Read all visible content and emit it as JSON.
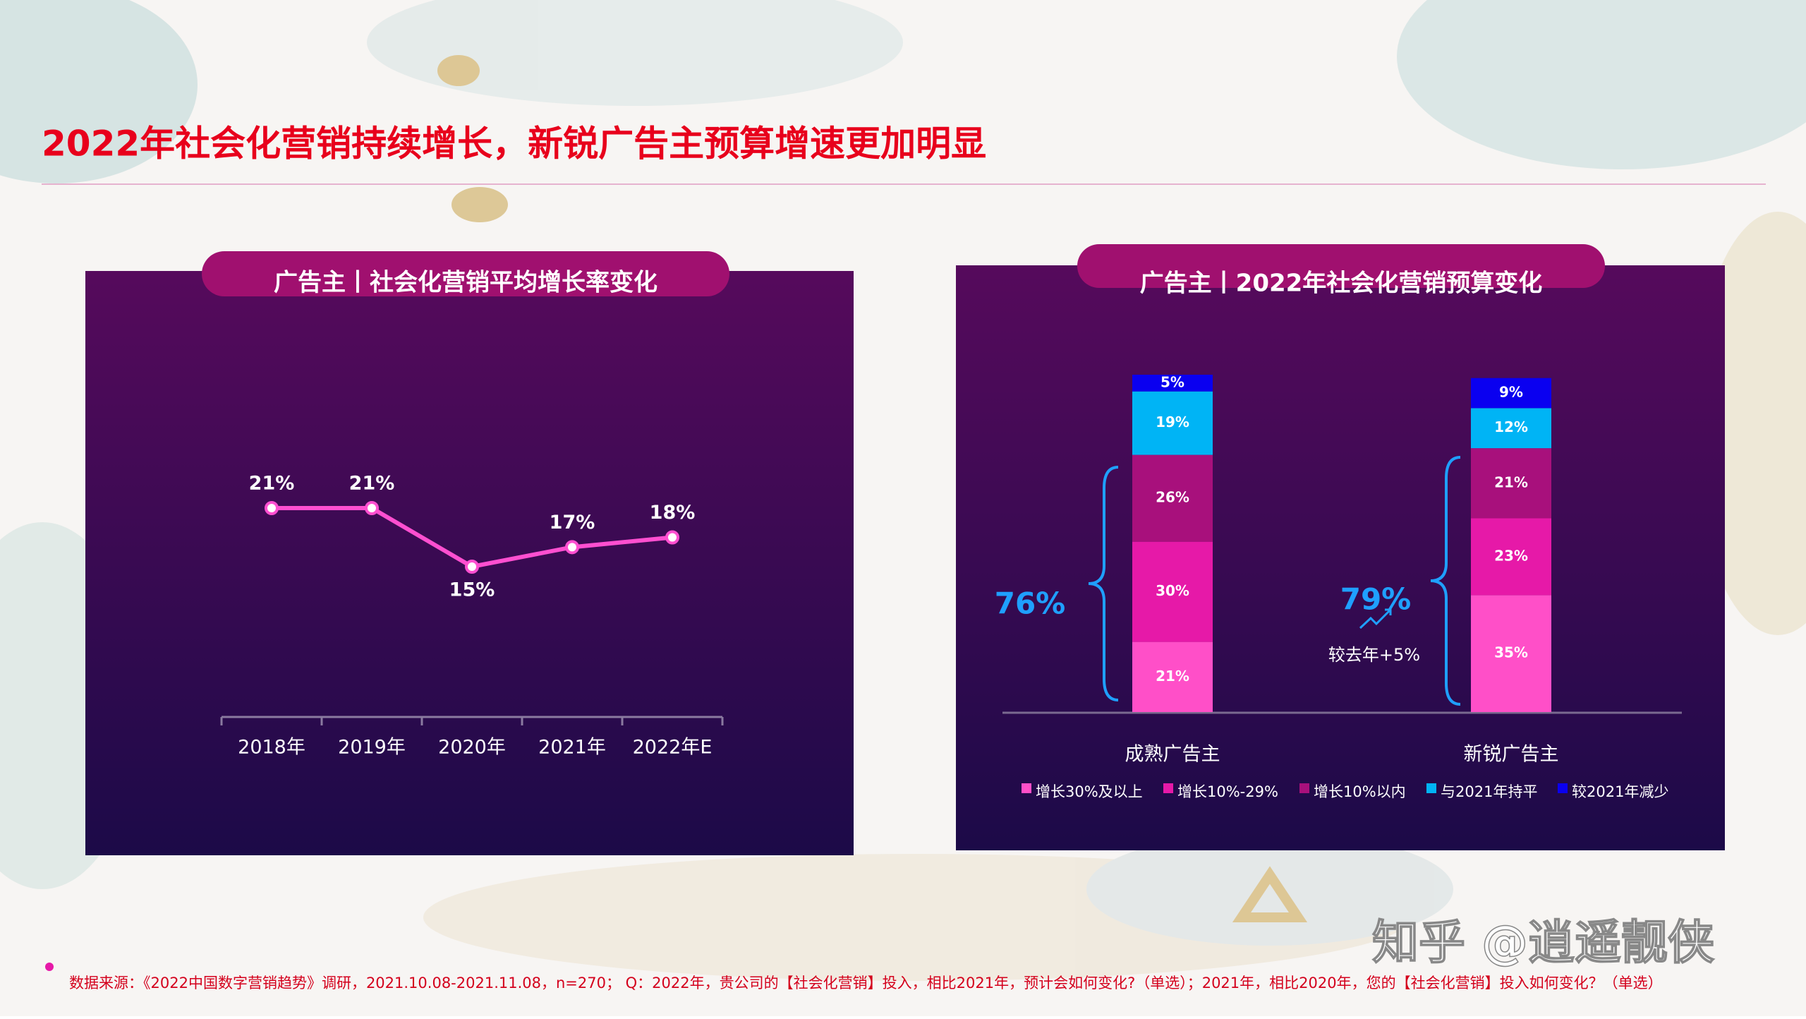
{
  "title": "2022年社会化营销持续增长，新锐广告主预算增速更加明显",
  "source": "数据来源：《2022中国数字营销趋势》调研，2021.10.08-2021.11.08，n=270； Q：2022年，贵公司的【社会化营销】投入，相比2021年，预计会如何变化?（单选）；2021年，相比2020年，您的【社会化营销】投入如何变化？（单选）",
  "watermark": "知乎 @逍遥靓侠",
  "chart_data": [
    {
      "type": "line",
      "title": "广告主丨社会化营销平均增长率变化",
      "categories": [
        "2018年",
        "2019年",
        "2020年",
        "2021年",
        "2022年E"
      ],
      "values": [
        21,
        21,
        15,
        17,
        18
      ],
      "value_labels": [
        "21%",
        "21%",
        "15%",
        "17%",
        "18%"
      ],
      "color": "#ff4fd0"
    },
    {
      "type": "bar",
      "stacked": true,
      "title": "广告主丨2022年社会化营销预算变化",
      "categories": [
        "成熟广告主",
        "新锐广告主"
      ],
      "series": [
        {
          "name": "增长30%及以上",
          "color": "#ff4fc8",
          "values": [
            21,
            35
          ],
          "value_labels": [
            "21%",
            "35%"
          ]
        },
        {
          "name": "增长10%-29%",
          "color": "#e619a8",
          "values": [
            30,
            23
          ],
          "value_labels": [
            "30%",
            "23%"
          ]
        },
        {
          "name": "增长10%以内",
          "color": "#a8107c",
          "values": [
            26,
            21
          ],
          "value_labels": [
            "26%",
            "21%"
          ]
        },
        {
          "name": "与2021年持平",
          "color": "#00b4f5",
          "values": [
            19,
            12
          ],
          "value_labels": [
            "19%",
            "12%"
          ]
        },
        {
          "name": "较2021年减少",
          "color": "#0a00f0",
          "values": [
            5,
            9
          ],
          "value_labels": [
            "5%",
            "9%"
          ]
        }
      ],
      "annotations": [
        "76%",
        "79%",
        "较去年+5%"
      ]
    }
  ]
}
